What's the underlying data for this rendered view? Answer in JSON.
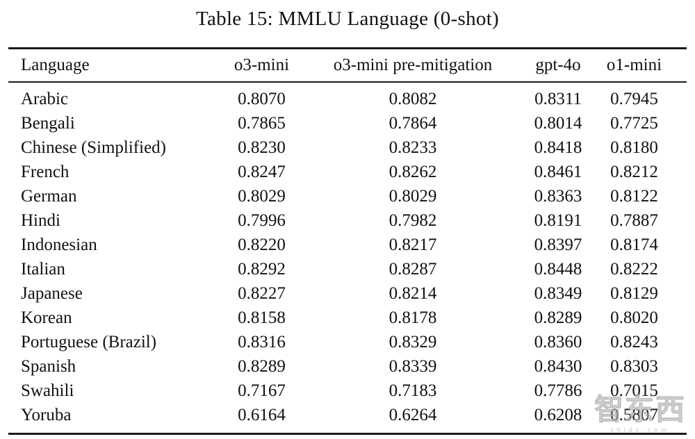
{
  "caption": "Table 15: MMLU Language (0-shot)",
  "table": {
    "columns": [
      "Language",
      "o3-mini",
      "o3-mini pre-mitigation",
      "gpt-4o",
      "o1-mini"
    ],
    "rows": [
      {
        "language": "Arabic",
        "values": [
          "0.8070",
          "0.8082",
          "0.8311",
          "0.7945"
        ]
      },
      {
        "language": "Bengali",
        "values": [
          "0.7865",
          "0.7864",
          "0.8014",
          "0.7725"
        ]
      },
      {
        "language": "Chinese (Simplified)",
        "values": [
          "0.8230",
          "0.8233",
          "0.8418",
          "0.8180"
        ]
      },
      {
        "language": "French",
        "values": [
          "0.8247",
          "0.8262",
          "0.8461",
          "0.8212"
        ]
      },
      {
        "language": "German",
        "values": [
          "0.8029",
          "0.8029",
          "0.8363",
          "0.8122"
        ]
      },
      {
        "language": "Hindi",
        "values": [
          "0.7996",
          "0.7982",
          "0.8191",
          "0.7887"
        ]
      },
      {
        "language": "Indonesian",
        "values": [
          "0.8220",
          "0.8217",
          "0.8397",
          "0.8174"
        ]
      },
      {
        "language": "Italian",
        "values": [
          "0.8292",
          "0.8287",
          "0.8448",
          "0.8222"
        ]
      },
      {
        "language": "Japanese",
        "values": [
          "0.8227",
          "0.8214",
          "0.8349",
          "0.8129"
        ]
      },
      {
        "language": "Korean",
        "values": [
          "0.8158",
          "0.8178",
          "0.8289",
          "0.8020"
        ]
      },
      {
        "language": "Portuguese (Brazil)",
        "values": [
          "0.8316",
          "0.8329",
          "0.8360",
          "0.8243"
        ]
      },
      {
        "language": "Spanish",
        "values": [
          "0.8289",
          "0.8339",
          "0.8430",
          "0.8303"
        ]
      },
      {
        "language": "Swahili",
        "values": [
          "0.7167",
          "0.7183",
          "0.7786",
          "0.7015"
        ]
      },
      {
        "language": "Yoruba",
        "values": [
          "0.6164",
          "0.6264",
          "0.6208",
          "0.5807"
        ]
      }
    ]
  },
  "watermark": {
    "logo_text": "智东西",
    "url_text": "zhidx.com"
  },
  "colors": {
    "text": "#111111",
    "rule": "#1a1a1a",
    "background": "#ffffff",
    "watermark_gray": "#b9b9b9"
  }
}
